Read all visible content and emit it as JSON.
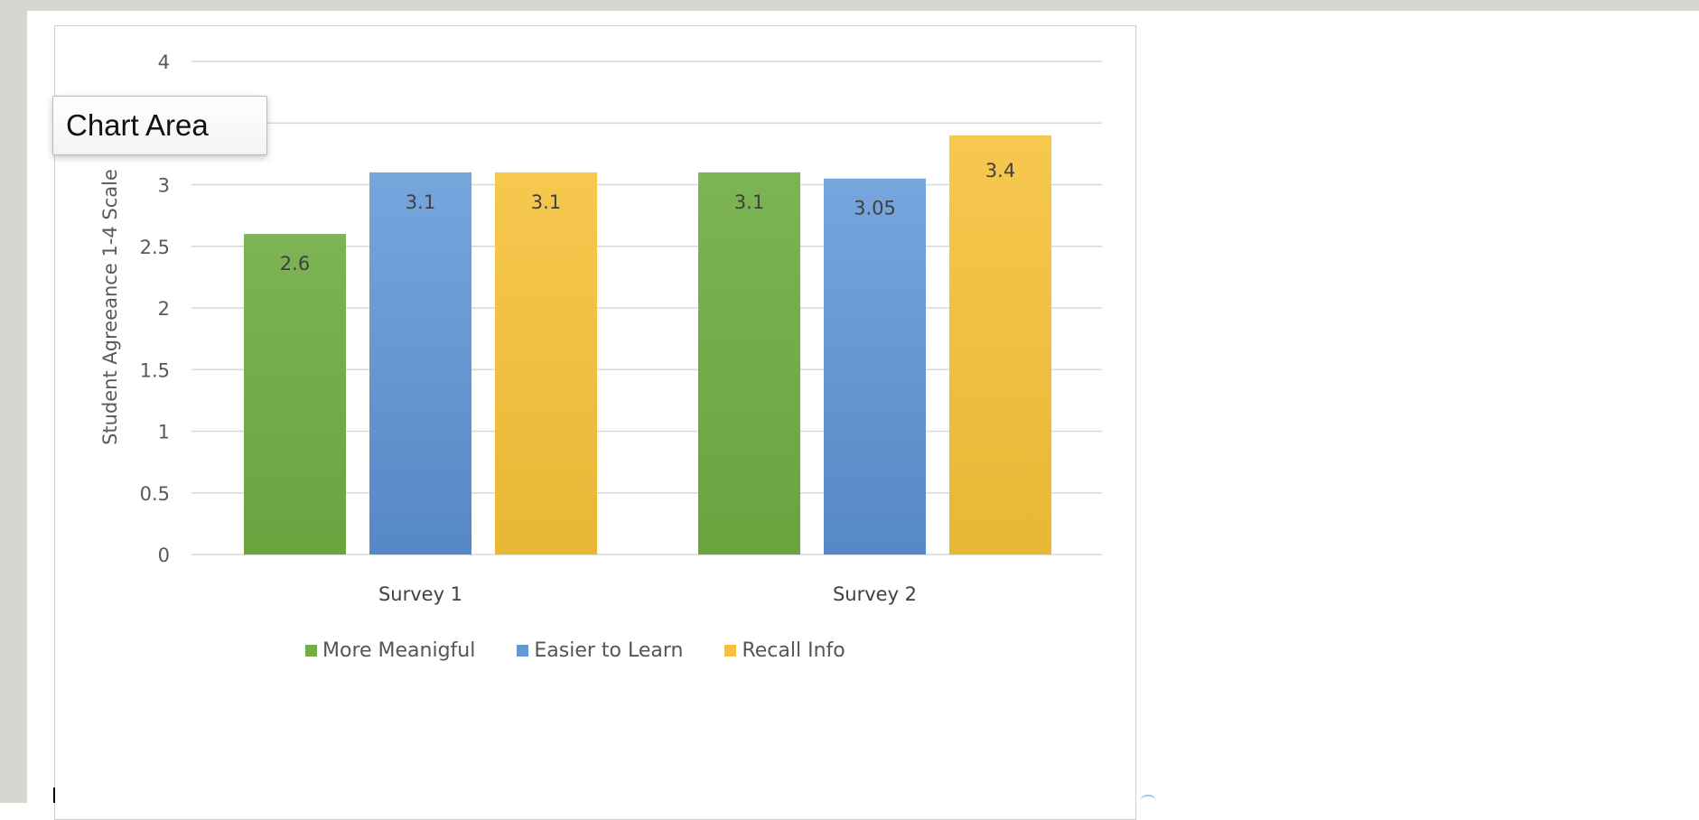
{
  "tooltip": {
    "label": "Chart Area"
  },
  "chart_data": {
    "type": "bar",
    "categories": [
      "Survey 1",
      "Survey 2"
    ],
    "series": [
      {
        "name": "More Meanigful",
        "values": [
          2.6,
          3.1
        ],
        "labels": [
          "2.6",
          "3.1"
        ],
        "color": "#74ac4a"
      },
      {
        "name": "Easier to Learn",
        "values": [
          3.1,
          3.05
        ],
        "labels": [
          "3.1",
          "3.05"
        ],
        "color": "#6598d2"
      },
      {
        "name": "Recall Info",
        "values": [
          3.1,
          3.4
        ],
        "labels": [
          "3.1",
          "3.4"
        ],
        "color": "#f4c042"
      }
    ],
    "title": "",
    "xlabel": "",
    "ylabel": "Student Agreeance 1-4 Scale",
    "ylim": [
      0,
      4
    ],
    "yticks": [
      "0",
      "0.5",
      "1",
      "1.5",
      "2",
      "2.5",
      "3",
      "3.5",
      "4"
    ],
    "grid": true,
    "legend": "bottom"
  }
}
